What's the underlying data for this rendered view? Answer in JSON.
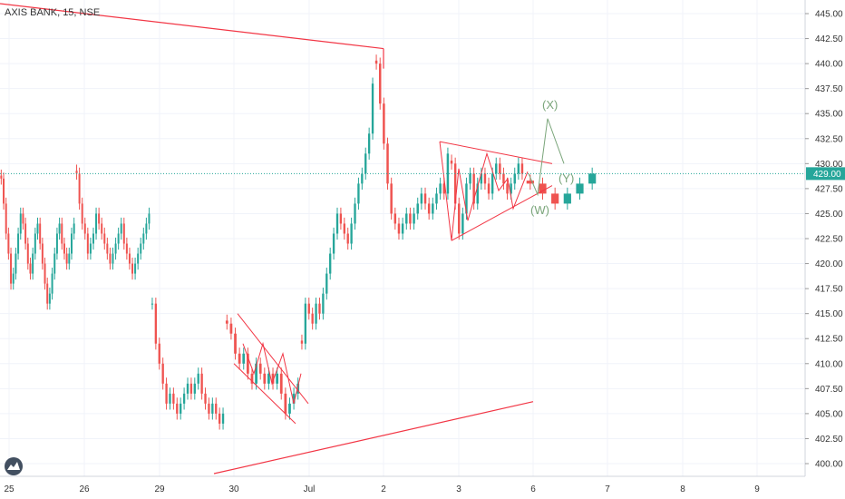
{
  "header": {
    "symbol": "AXIS BANK, 15, NSE"
  },
  "price_axis": {
    "labels": [
      "445.00",
      "442.50",
      "440.00",
      "437.50",
      "435.00",
      "432.50",
      "430.00",
      "427.50",
      "425.00",
      "422.50",
      "420.00",
      "417.50",
      "415.00",
      "412.50",
      "410.00",
      "407.50",
      "405.00",
      "402.50",
      "400.00"
    ],
    "current_price_label": "429.00"
  },
  "time_axis": {
    "labels": [
      "25",
      "26",
      "29",
      "30",
      "Jul",
      "2",
      "3",
      "6",
      "7",
      "8",
      "9"
    ]
  },
  "colors": {
    "up": "#26a69a",
    "down": "#ef5350",
    "drawing": "#f23645",
    "projection": "#7aa57a",
    "price_line": "#26a69a",
    "grid": "#f0f3fa"
  },
  "wave_labels": [
    "(X)",
    "(Y)",
    "(W)"
  ],
  "chart_data": {
    "type": "candlestick",
    "title": "AXIS BANK, 15, NSE",
    "ylim": [
      399,
      446
    ],
    "y_ticks": [
      400,
      402.5,
      405,
      407.5,
      410,
      412.5,
      415,
      417.5,
      420,
      422.5,
      425,
      427.5,
      430,
      432.5,
      435,
      437.5,
      440,
      442.5,
      445
    ],
    "x_ticks": [
      "25",
      "26",
      "29",
      "30",
      "Jul",
      "2",
      "3",
      "6",
      "7",
      "8",
      "9"
    ],
    "current_price": 429.0,
    "closes": {
      "25": [
        428.5,
        426,
        423,
        421,
        418,
        419,
        421,
        423,
        425,
        424,
        422,
        420,
        419,
        421,
        423,
        424,
        422,
        420,
        418,
        416,
        417,
        419,
        421,
        423,
        424,
        422,
        421,
        420,
        421,
        423,
        424
      ],
      "26": [
        429,
        426,
        424,
        423,
        421,
        422,
        423,
        425,
        424,
        423,
        422,
        421,
        420,
        421,
        422,
        423,
        424,
        422,
        421,
        420,
        419,
        420,
        421,
        422,
        423,
        424,
        425
      ],
      "29": [
        416,
        412,
        410,
        408,
        406,
        407,
        406,
        405,
        406,
        407,
        408,
        407,
        408,
        409,
        407,
        406,
        405,
        406,
        405,
        404,
        405
      ],
      "30": [
        414,
        413,
        411,
        410,
        411,
        409,
        408,
        410,
        409,
        408,
        409,
        408,
        409,
        407,
        405,
        406,
        407,
        408
      ],
      "Jul": [
        412,
        416,
        415,
        414,
        416,
        415,
        417,
        419,
        421,
        423,
        425,
        424,
        423,
        422,
        424,
        426,
        428,
        429,
        431,
        433,
        438
      ],
      "2": [
        440,
        436,
        432,
        428,
        425,
        424,
        423,
        424,
        425,
        424,
        425,
        426,
        427,
        426,
        425,
        426,
        427,
        428,
        427,
        431
      ],
      "3": [
        430,
        426,
        423,
        425,
        428,
        429,
        426,
        428,
        429,
        428,
        427,
        429,
        430,
        429,
        428,
        427,
        428,
        429,
        430,
        429
      ],
      "6": [
        428,
        427,
        426,
        427,
        428,
        429
      ]
    },
    "drawings": {
      "trend_lines": [
        {
          "from": [
            "25",
            446
          ],
          "to": [
            "2",
            441.5
          ]
        },
        {
          "from": [
            "29",
            399
          ],
          "to": [
            "6",
            406.2
          ]
        }
      ],
      "flag_channel": {
        "upper": [
          [
            "30",
            415
          ],
          [
            "Jul",
            406
          ]
        ],
        "lower": [
          [
            "30",
            410
          ],
          [
            "Jul",
            404
          ]
        ]
      },
      "triangle": {
        "upper": [
          [
            "3",
            432.2
          ],
          [
            "6",
            430
          ]
        ],
        "lower": [
          [
            "3",
            422.3
          ],
          [
            "6",
            427.8
          ]
        ]
      },
      "projection": [
        [
          429.2,
          426.9
        ],
        [
          434.5,
          430
        ]
      ],
      "wave_labels": [
        {
          "text": "(X)",
          "price": 436.5
        },
        {
          "text": "(Y)",
          "price": 428.6
        },
        {
          "text": "(W)",
          "price": 425.3
        }
      ]
    }
  }
}
